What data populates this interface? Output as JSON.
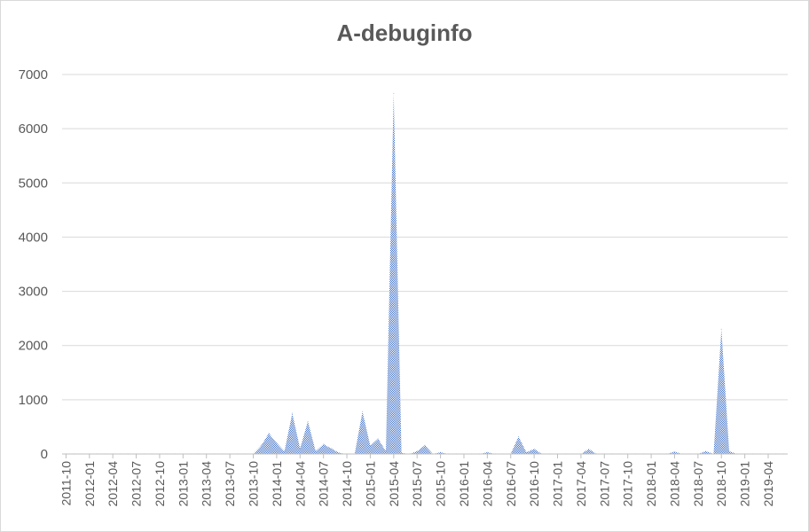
{
  "chart_data": {
    "type": "area",
    "title": "A-debuginfo",
    "xlabel": "",
    "ylabel": "",
    "ylim": [
      0,
      7000
    ],
    "yticks": [
      0,
      1000,
      2000,
      3000,
      4000,
      5000,
      6000,
      7000
    ],
    "x_tick_labels": [
      "2011-10",
      "2012-01",
      "2012-04",
      "2012-07",
      "2012-10",
      "2013-01",
      "2013-04",
      "2013-07",
      "2013-10",
      "2014-01",
      "2014-04",
      "2014-07",
      "2014-10",
      "2015-01",
      "2015-04",
      "2015-07",
      "2015-10",
      "2016-01",
      "2016-04",
      "2016-07",
      "2016-10",
      "2017-01",
      "2017-04",
      "2017-07",
      "2017-10",
      "2018-01",
      "2018-04",
      "2018-07",
      "2018-10",
      "2019-01",
      "2019-04"
    ],
    "grid": "horizontal",
    "legend": "none",
    "fill_color": "#4472c4",
    "series": [
      {
        "x": [
          "2011-10",
          "2011-11",
          "2011-12",
          "2012-01",
          "2012-02",
          "2012-03",
          "2012-04",
          "2012-05",
          "2012-06",
          "2012-07",
          "2012-08",
          "2012-09",
          "2012-10",
          "2012-11",
          "2012-12",
          "2013-01",
          "2013-02",
          "2013-03",
          "2013-04",
          "2013-05",
          "2013-06",
          "2013-07",
          "2013-08",
          "2013-09",
          "2013-10",
          "2013-11",
          "2013-12",
          "2014-01",
          "2014-02",
          "2014-03",
          "2014-04",
          "2014-05",
          "2014-06",
          "2014-07",
          "2014-08",
          "2014-09",
          "2014-10",
          "2014-11",
          "2014-12",
          "2015-01",
          "2015-02",
          "2015-03",
          "2015-04",
          "2015-05",
          "2015-06",
          "2015-07",
          "2015-08",
          "2015-09",
          "2015-10",
          "2015-11",
          "2015-12",
          "2016-01",
          "2016-02",
          "2016-03",
          "2016-04",
          "2016-05",
          "2016-06",
          "2016-07",
          "2016-08",
          "2016-09",
          "2016-10",
          "2016-11",
          "2016-12",
          "2017-01",
          "2017-02",
          "2017-03",
          "2017-04",
          "2017-05",
          "2017-06",
          "2017-07",
          "2017-08",
          "2017-09",
          "2017-10",
          "2017-11",
          "2017-12",
          "2018-01",
          "2018-02",
          "2018-03",
          "2018-04",
          "2018-05",
          "2018-06",
          "2018-07",
          "2018-08",
          "2018-09",
          "2018-10",
          "2018-11",
          "2018-12",
          "2019-01",
          "2019-02",
          "2019-03",
          "2019-04",
          "2019-05",
          "2019-06"
        ],
        "values": [
          0,
          0,
          0,
          0,
          0,
          0,
          0,
          0,
          0,
          0,
          0,
          0,
          0,
          0,
          0,
          0,
          0,
          0,
          0,
          0,
          0,
          0,
          0,
          0,
          0,
          150,
          380,
          200,
          50,
          750,
          100,
          600,
          50,
          180,
          100,
          20,
          0,
          0,
          780,
          150,
          280,
          50,
          6650,
          20,
          0,
          50,
          160,
          0,
          30,
          0,
          0,
          0,
          0,
          0,
          30,
          0,
          0,
          0,
          320,
          30,
          90,
          0,
          0,
          0,
          0,
          0,
          0,
          90,
          0,
          0,
          0,
          0,
          0,
          0,
          0,
          0,
          0,
          0,
          40,
          0,
          0,
          0,
          50,
          0,
          2300,
          50,
          0,
          0,
          0,
          0,
          0,
          0,
          0
        ]
      }
    ]
  }
}
